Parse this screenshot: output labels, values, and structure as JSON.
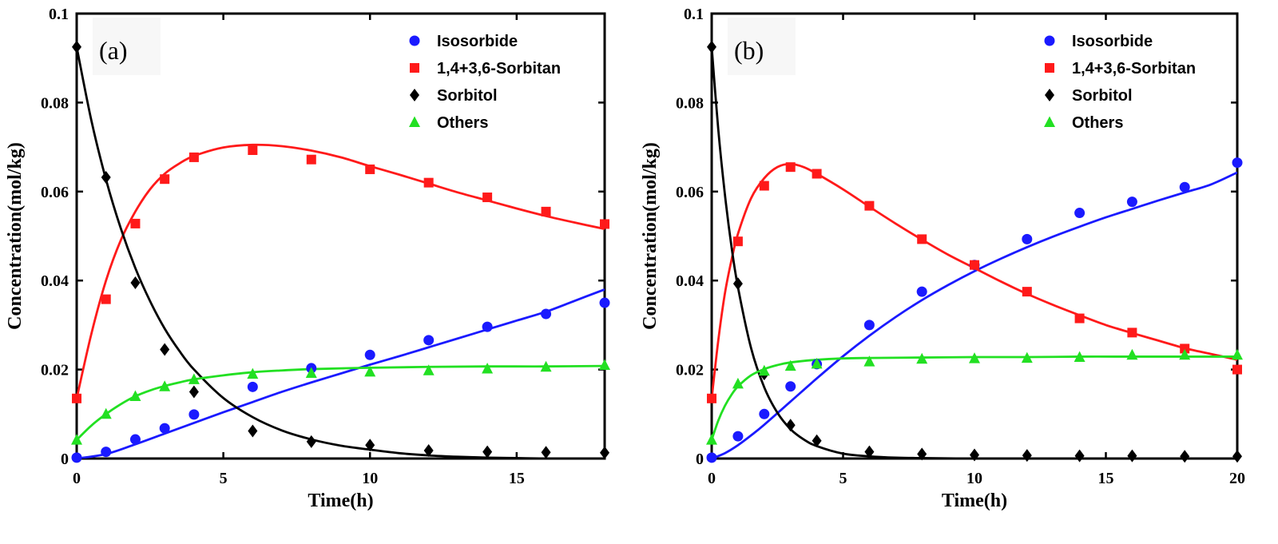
{
  "chart_data": [
    {
      "type": "scatter",
      "panel_label": "(a)",
      "xlabel": "Time(h)",
      "ylabel": "Concentration(mol/kg)",
      "xlim": [
        0,
        18
      ],
      "ylim": [
        0,
        0.1
      ],
      "xticks": [
        0,
        5,
        10,
        15
      ],
      "yticks": [
        0,
        0.02,
        0.04,
        0.06,
        0.08,
        0.1
      ],
      "ytick_labels": [
        "0",
        "0.02",
        "0.04",
        "0.06",
        "0.08",
        "0.1"
      ],
      "legend_position": "top-right",
      "series": [
        {
          "name": "Isosorbide",
          "color": "#1a1aff",
          "marker": "circle",
          "x": [
            0,
            1,
            2,
            3,
            4,
            6,
            8,
            10,
            12,
            14,
            16,
            18
          ],
          "y": [
            0.0002,
            0.0015,
            0.0043,
            0.0068,
            0.0099,
            0.0161,
            0.0203,
            0.0233,
            0.0266,
            0.0296,
            0.0325,
            0.035
          ],
          "fit_x": [
            0,
            1,
            2,
            3,
            4,
            5,
            6,
            7,
            8,
            9,
            10,
            11,
            12,
            13,
            14,
            15,
            16,
            17,
            18
          ],
          "fit_y": [
            0.0,
            0.001,
            0.0032,
            0.0056,
            0.008,
            0.0104,
            0.0127,
            0.015,
            0.0171,
            0.0191,
            0.0211,
            0.023,
            0.025,
            0.027,
            0.029,
            0.031,
            0.033,
            0.0355,
            0.038
          ]
        },
        {
          "name": "1,4+3,6-Sorbitan",
          "color": "#ff1a1a",
          "marker": "square",
          "x": [
            0,
            1,
            2,
            3,
            4,
            6,
            8,
            10,
            12,
            14,
            16,
            18
          ],
          "y": [
            0.0135,
            0.0358,
            0.0528,
            0.0628,
            0.0677,
            0.0693,
            0.0672,
            0.065,
            0.062,
            0.0587,
            0.0555,
            0.0527
          ],
          "fit_x": [
            0,
            0.5,
            1,
            1.5,
            2,
            2.5,
            3,
            3.5,
            4,
            5,
            6,
            7,
            8,
            9,
            10,
            11,
            12,
            13,
            14,
            15,
            16,
            17,
            18
          ],
          "fit_y": [
            0.0135,
            0.028,
            0.04,
            0.049,
            0.0555,
            0.0605,
            0.064,
            0.0663,
            0.068,
            0.0699,
            0.0705,
            0.0702,
            0.0692,
            0.0677,
            0.0657,
            0.0638,
            0.0618,
            0.0598,
            0.058,
            0.0562,
            0.0545,
            0.053,
            0.0516
          ]
        },
        {
          "name": "Sorbitol",
          "color": "#000000",
          "marker": "diamond",
          "x": [
            0,
            1,
            2,
            3,
            4,
            6,
            8,
            10,
            12,
            14,
            16,
            18
          ],
          "y": [
            0.0925,
            0.0632,
            0.0395,
            0.0245,
            0.015,
            0.0062,
            0.0038,
            0.003,
            0.0018,
            0.0015,
            0.0014,
            0.0013
          ],
          "fit_x": [
            0,
            0.5,
            1,
            1.5,
            2,
            2.5,
            3,
            3.5,
            4,
            5,
            6,
            7,
            8,
            9,
            10,
            11,
            12,
            13,
            14,
            15,
            16,
            17,
            18
          ],
          "fit_y": [
            0.0925,
            0.076,
            0.0627,
            0.0518,
            0.0428,
            0.0354,
            0.0292,
            0.0242,
            0.02,
            0.0136,
            0.0093,
            0.0063,
            0.0043,
            0.0029,
            0.002,
            0.0012,
            0.0007,
            0.0004,
            0.0002,
            0.0001,
            0.0,
            0.0,
            0.0
          ]
        },
        {
          "name": "Others",
          "color": "#22e022",
          "marker": "triangle",
          "x": [
            0,
            1,
            2,
            3,
            4,
            6,
            8,
            10,
            12,
            14,
            16,
            18
          ],
          "y": [
            0.0042,
            0.01,
            0.014,
            0.0162,
            0.0178,
            0.019,
            0.0192,
            0.0195,
            0.0198,
            0.0202,
            0.0206,
            0.021
          ],
          "fit_x": [
            0,
            0.5,
            1,
            1.5,
            2,
            2.5,
            3,
            3.5,
            4,
            5,
            6,
            7,
            8,
            10,
            12,
            14,
            16,
            18
          ],
          "fit_y": [
            0.0042,
            0.0074,
            0.01,
            0.0122,
            0.014,
            0.0153,
            0.0163,
            0.0171,
            0.0178,
            0.0187,
            0.0194,
            0.0198,
            0.0201,
            0.0204,
            0.0206,
            0.0207,
            0.0207,
            0.0208
          ]
        }
      ]
    },
    {
      "type": "scatter",
      "panel_label": "(b)",
      "xlabel": "Time(h)",
      "ylabel": "Concentration(mol/kg)",
      "xlim": [
        0,
        20
      ],
      "ylim": [
        0,
        0.1
      ],
      "xticks": [
        0,
        5,
        10,
        15,
        20
      ],
      "yticks": [
        0,
        0.02,
        0.04,
        0.06,
        0.08,
        0.1
      ],
      "ytick_labels": [
        "0",
        "0.02",
        "0.04",
        "0.06",
        "0.08",
        "0.1"
      ],
      "legend_position": "top-right",
      "series": [
        {
          "name": "Isosorbide",
          "color": "#1a1aff",
          "marker": "circle",
          "x": [
            0,
            1,
            2,
            3,
            4,
            6,
            8,
            10,
            12,
            14,
            16,
            18,
            20
          ],
          "y": [
            0.0002,
            0.005,
            0.01,
            0.0162,
            0.0212,
            0.03,
            0.0375,
            0.0435,
            0.0493,
            0.0552,
            0.0577,
            0.061,
            0.0665
          ],
          "fit_x": [
            0,
            0.5,
            1,
            1.5,
            2,
            3,
            4,
            5,
            6,
            7,
            8,
            9,
            10,
            11,
            12,
            13,
            14,
            15,
            16,
            17,
            18,
            19,
            20
          ],
          "fit_y": [
            0.0,
            0.0012,
            0.003,
            0.0052,
            0.0076,
            0.0128,
            0.018,
            0.023,
            0.0276,
            0.0318,
            0.0356,
            0.039,
            0.0421,
            0.0449,
            0.0475,
            0.0499,
            0.0521,
            0.0542,
            0.0561,
            0.058,
            0.0598,
            0.0616,
            0.0643
          ]
        },
        {
          "name": "1,4+3,6-Sorbitan",
          "color": "#ff1a1a",
          "marker": "square",
          "x": [
            0,
            1,
            2,
            3,
            4,
            6,
            8,
            10,
            12,
            14,
            16,
            18,
            20
          ],
          "y": [
            0.0135,
            0.0488,
            0.0613,
            0.0655,
            0.064,
            0.0568,
            0.0493,
            0.0435,
            0.0375,
            0.0315,
            0.0283,
            0.0247,
            0.02
          ],
          "fit_x": [
            0,
            0.25,
            0.5,
            0.75,
            1,
            1.5,
            2,
            2.5,
            3,
            3.5,
            4,
            5,
            6,
            7,
            8,
            9,
            10,
            11,
            12,
            13,
            14,
            15,
            16,
            17,
            18,
            19,
            20
          ],
          "fit_y": [
            0.0135,
            0.0265,
            0.037,
            0.0445,
            0.0505,
            0.0585,
            0.063,
            0.0655,
            0.0662,
            0.0655,
            0.064,
            0.0605,
            0.0566,
            0.0528,
            0.0492,
            0.0458,
            0.0428,
            0.0398,
            0.037,
            0.0345,
            0.0322,
            0.03,
            0.0282,
            0.0265,
            0.0248,
            0.0235,
            0.0222
          ]
        },
        {
          "name": "Sorbitol",
          "color": "#000000",
          "marker": "diamond",
          "x": [
            0,
            1,
            2,
            3,
            4,
            6,
            8,
            10,
            12,
            14,
            16,
            18,
            20
          ],
          "y": [
            0.0925,
            0.0393,
            0.019,
            0.0075,
            0.004,
            0.0015,
            0.001,
            0.0008,
            0.0007,
            0.0006,
            0.0006,
            0.0005,
            0.0005
          ],
          "fit_x": [
            0,
            0.25,
            0.5,
            0.75,
            1,
            1.5,
            2,
            2.5,
            3,
            3.5,
            4,
            5,
            6,
            7,
            8,
            10,
            12,
            14,
            16,
            18,
            20
          ],
          "fit_y": [
            0.0925,
            0.074,
            0.0595,
            0.0478,
            0.0385,
            0.0248,
            0.016,
            0.0103,
            0.0066,
            0.0043,
            0.0028,
            0.0011,
            0.0005,
            0.0002,
            0.0001,
            0.0,
            0.0,
            0.0,
            0.0,
            0.0,
            0.0
          ]
        },
        {
          "name": "Others",
          "color": "#22e022",
          "marker": "triangle",
          "x": [
            0,
            1,
            2,
            3,
            4,
            6,
            8,
            10,
            12,
            14,
            16,
            18,
            20
          ],
          "y": [
            0.0042,
            0.0168,
            0.0197,
            0.0208,
            0.0213,
            0.0218,
            0.0224,
            0.0225,
            0.0226,
            0.0228,
            0.0233,
            0.0233,
            0.0233
          ],
          "fit_x": [
            0,
            0.25,
            0.5,
            0.75,
            1,
            1.5,
            2,
            2.5,
            3,
            4,
            5,
            6,
            8,
            10,
            12,
            14,
            16,
            18,
            20
          ],
          "fit_y": [
            0.0042,
            0.0085,
            0.0118,
            0.0143,
            0.0162,
            0.0187,
            0.0201,
            0.021,
            0.0216,
            0.0222,
            0.0225,
            0.0226,
            0.0227,
            0.0228,
            0.0228,
            0.0229,
            0.0229,
            0.0229,
            0.0229
          ]
        }
      ]
    }
  ]
}
